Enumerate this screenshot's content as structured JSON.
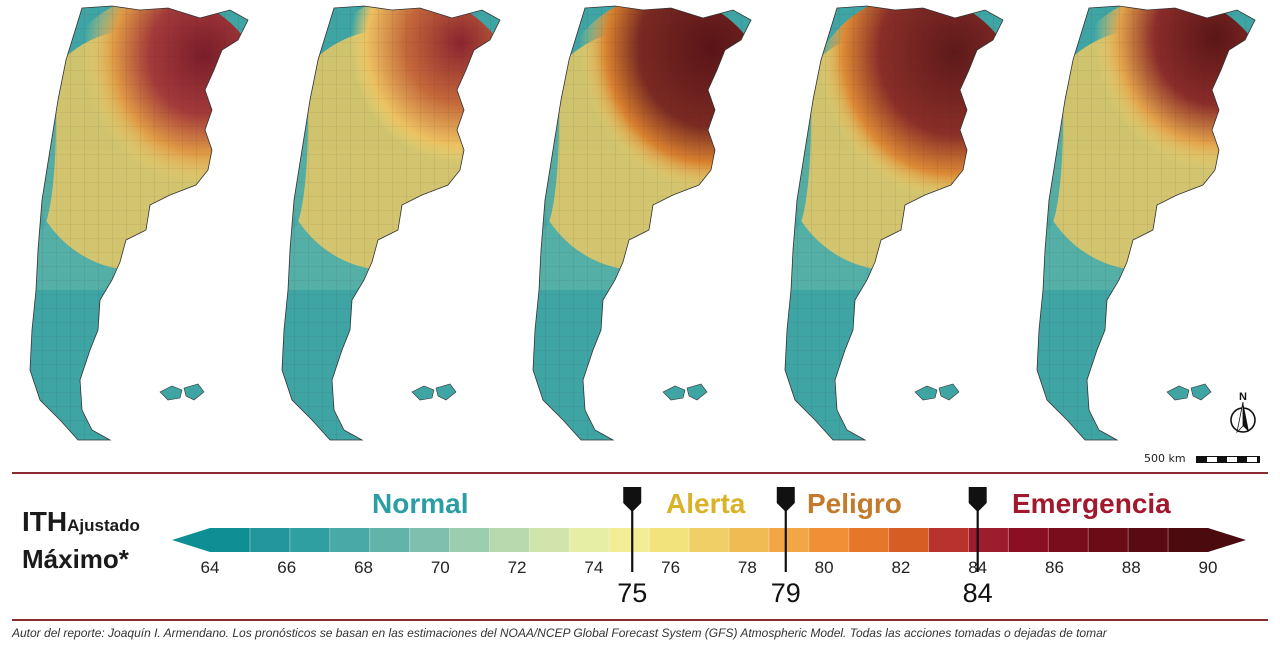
{
  "maps": {
    "panel_count": 5,
    "panels": [
      "day-1",
      "day-2",
      "day-3",
      "day-4",
      "day-5"
    ]
  },
  "scale": {
    "label": "500 km"
  },
  "north": {
    "label": "N"
  },
  "legend": {
    "title_main": "ITH",
    "title_sub": "Ajustado",
    "title_line2": "Máximo*",
    "categories": [
      {
        "label": "Normal",
        "color": "#2a9ea3"
      },
      {
        "label": "Alerta",
        "color": "#d9b227"
      },
      {
        "label": "Peligro",
        "color": "#c47a2c"
      },
      {
        "label": "Emergencia",
        "color": "#a2182c"
      }
    ],
    "tick_labels": [
      "64",
      "66",
      "68",
      "70",
      "72",
      "74",
      "76",
      "78",
      "80",
      "82",
      "84",
      "86",
      "88",
      "90"
    ],
    "thresholds": [
      "75",
      "79",
      "84"
    ],
    "colors": [
      "#0f8f94",
      "#21979b",
      "#2f9fa1",
      "#48a9a7",
      "#62b4ab",
      "#7ec0ad",
      "#9bcdae",
      "#b7d9ae",
      "#d0e4ab",
      "#e6eea6",
      "#f3ee96",
      "#f3e37c",
      "#f0d066",
      "#efbb52",
      "#f3a646",
      "#f08f35",
      "#e6762a",
      "#d65d24",
      "#b8332d",
      "#9e1d2d",
      "#8b0f22",
      "#7a0d1c",
      "#6a0b16",
      "#5a0a12",
      "#4a0a0e"
    ]
  },
  "footer": {
    "text": "Autor del reporte: Joaquín I. Armendano. Los pronósticos se basan en las estimaciones del NOAA/NCEP Global Forecast System (GFS) Atmospheric Model. Todas las acciones tomadas o dejadas de tomar"
  }
}
